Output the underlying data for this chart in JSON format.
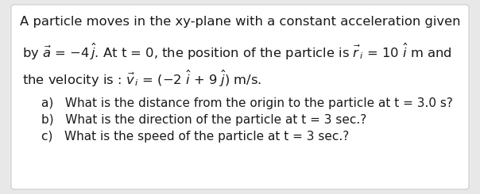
{
  "outer_bg": "#e8e8e8",
  "box_bg": "#ffffff",
  "box_border": "#cccccc",
  "text_color": "#1a1a1a",
  "font_size_main": 11.8,
  "font_size_sub": 11.0,
  "line1": "A particle moves in the xy-plane with a constant acceleration given",
  "line2": "by $\\vec{a}$ = $-$4$\\,\\hat{j}$. At t = 0, the position of the particle is $\\vec{r}_{\\,i}$ = 10 $\\hat{i}$ m and",
  "line3": "the velocity is : $\\vec{v}_{\\,i}$ = ($-$2 $\\hat{i}$ + 9 $\\hat{j}$) m/s.",
  "sub_a": "a)   What is the distance from the origin to the particle at t = 3.0 s?",
  "sub_b": "b)   What is the direction of the particle at t = 3 sec.?",
  "sub_c": "c)   What is the speed of the particle at t = 3 sec.?"
}
